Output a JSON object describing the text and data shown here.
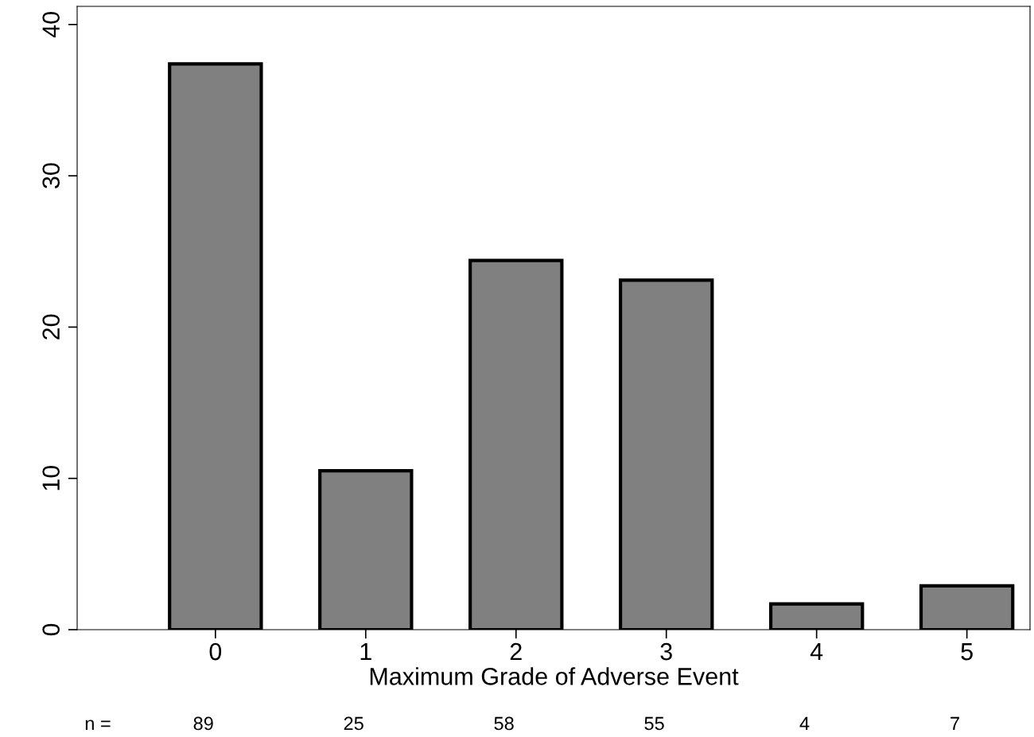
{
  "chart_data": {
    "type": "bar",
    "xlabel": "Maximum Grade of Adverse Event",
    "categories": [
      "0",
      "1",
      "2",
      "3",
      "4",
      "5"
    ],
    "values": [
      37.4,
      10.5,
      24.4,
      23.1,
      1.7,
      2.9
    ],
    "color": "#808080",
    "ylim": [
      0,
      41.2
    ],
    "yticks": [
      0,
      10,
      20,
      30,
      40
    ],
    "grid": false,
    "annotations": [
      "n =",
      "89",
      "25",
      "58",
      "55",
      "4",
      "7"
    ]
  }
}
